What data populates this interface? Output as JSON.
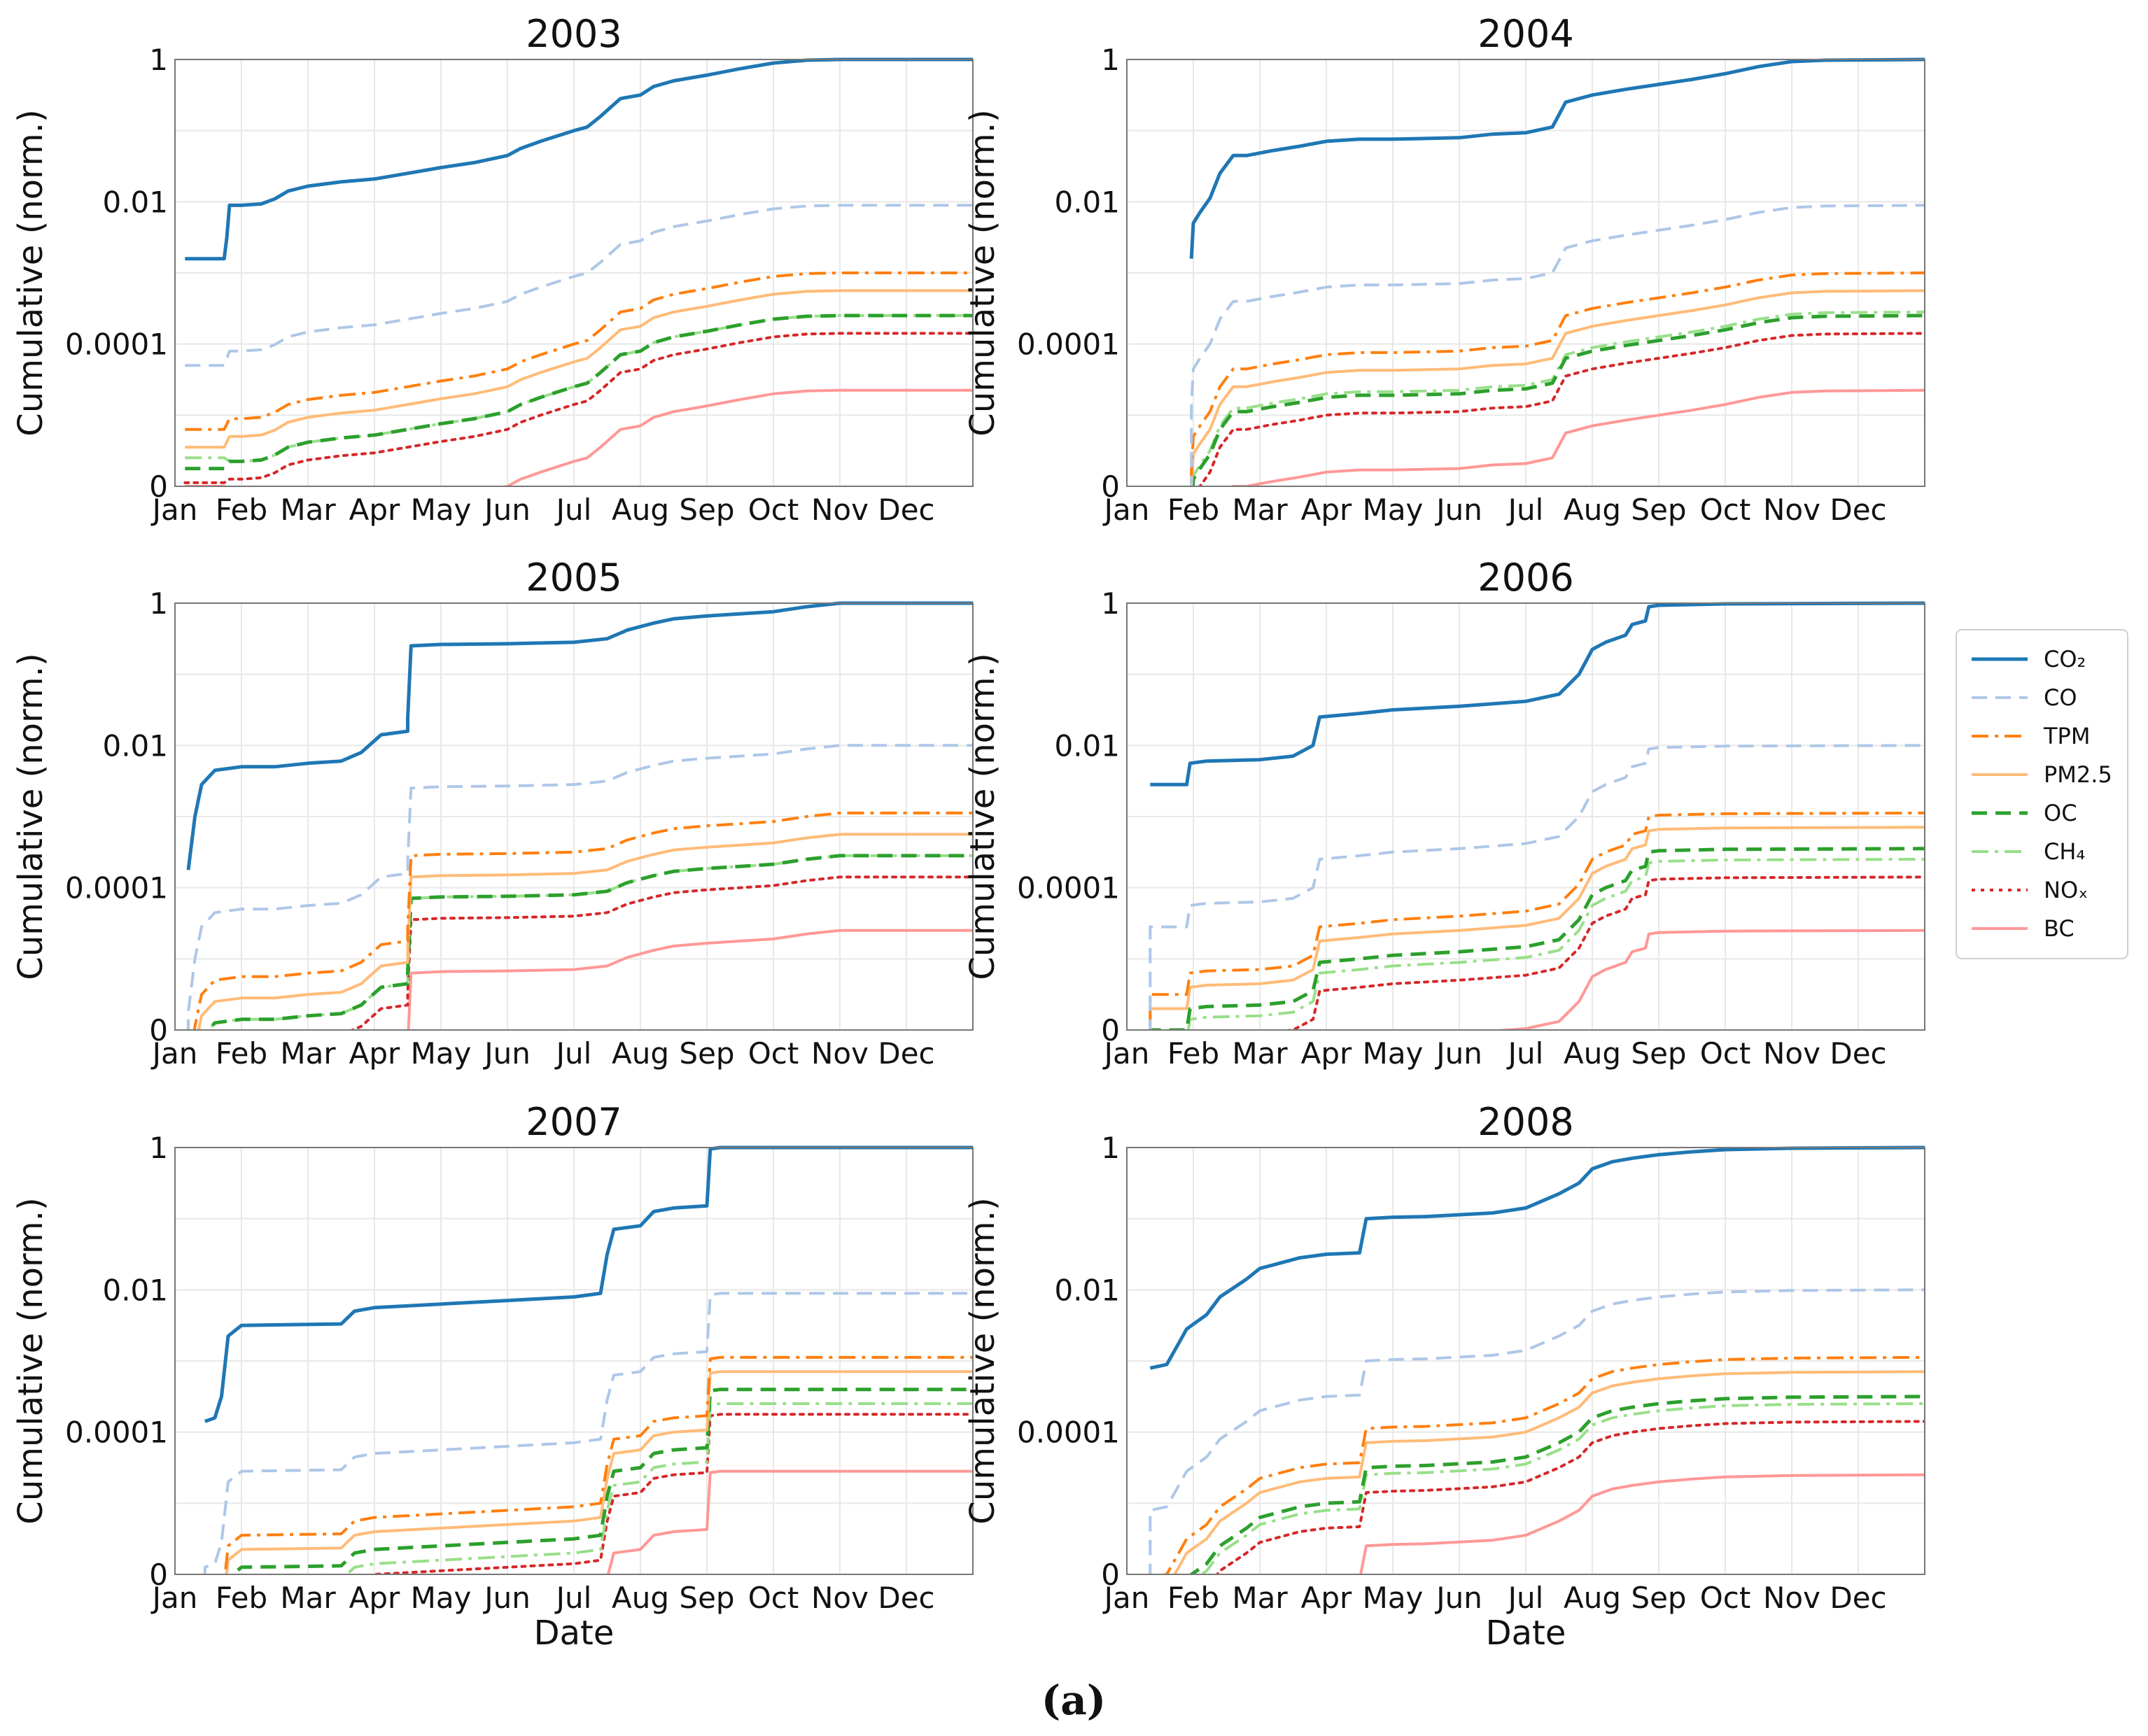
{
  "chart_data": {
    "type": "line",
    "y_scale": "log",
    "ylabel": "Cumulative (norm.)",
    "xlabel": "Date",
    "month_ticks": [
      "Jan",
      "Feb",
      "Mar",
      "Apr",
      "May",
      "Jun",
      "Jul",
      "Aug",
      "Sep",
      "Oct",
      "Nov",
      "Dec"
    ],
    "y_ticks": [
      {
        "value": 1e-06,
        "label": "0"
      },
      {
        "value": 0.0001,
        "label": "0.0001"
      },
      {
        "value": 0.01,
        "label": "0.01"
      },
      {
        "value": 1,
        "label": "1"
      }
    ],
    "ylim": [
      1e-06,
      1
    ],
    "grid": true,
    "legend_position": "right",
    "caption": "(a)",
    "legend": [
      {
        "key": "CO2",
        "label": "CO₂",
        "color": "#1f77b4",
        "dash": "solid",
        "width": 5
      },
      {
        "key": "CO",
        "label": "CO",
        "color": "#aec7e8",
        "dash": "dashed",
        "width": 4
      },
      {
        "key": "TPM",
        "label": "TPM",
        "color": "#ff7f0e",
        "dash": "dashdot",
        "width": 4
      },
      {
        "key": "PM25",
        "label": "PM2.5",
        "color": "#ffbb78",
        "dash": "solid",
        "width": 4
      },
      {
        "key": "OC",
        "label": "OC",
        "color": "#2ca02c",
        "dash": "dashed",
        "width": 5
      },
      {
        "key": "CH4",
        "label": "CH₄",
        "color": "#98df8a",
        "dash": "dashdot",
        "width": 4
      },
      {
        "key": "NOx",
        "label": "NOₓ",
        "color": "#d62728",
        "dash": "dotted",
        "width": 4
      },
      {
        "key": "BC",
        "label": "BC",
        "color": "#ff9896",
        "dash": "solid",
        "width": 4
      }
    ],
    "panels": [
      {
        "title": "2003",
        "co2_curve": [
          [
            0.15,
            -2.8
          ],
          [
            0.74,
            -2.8
          ],
          [
            0.78,
            -2.5
          ],
          [
            0.82,
            -2.05
          ],
          [
            1.0,
            -2.05
          ],
          [
            1.3,
            -2.03
          ],
          [
            1.5,
            -1.96
          ],
          [
            1.7,
            -1.85
          ],
          [
            2.0,
            -1.78
          ],
          [
            2.5,
            -1.72
          ],
          [
            3.0,
            -1.68
          ],
          [
            3.5,
            -1.6
          ],
          [
            4.0,
            -1.52
          ],
          [
            4.5,
            -1.45
          ],
          [
            5.0,
            -1.35
          ],
          [
            5.2,
            -1.25
          ],
          [
            5.5,
            -1.15
          ],
          [
            6.0,
            -1.0
          ],
          [
            6.2,
            -0.95
          ],
          [
            6.4,
            -0.8
          ],
          [
            6.7,
            -0.55
          ],
          [
            7.0,
            -0.5
          ],
          [
            7.2,
            -0.38
          ],
          [
            7.5,
            -0.3
          ],
          [
            8.0,
            -0.22
          ],
          [
            8.5,
            -0.13
          ],
          [
            9.0,
            -0.05
          ],
          [
            9.5,
            -0.01
          ],
          [
            10.0,
            0.0
          ],
          [
            12.0,
            0.0
          ]
        ],
        "offsets": {
          "CO": -2.05,
          "TPM": -3.0,
          "PM25": -3.25,
          "OC": -3.6,
          "CH4": -3.6,
          "NOx": -3.85,
          "BC": -4.65
        },
        "other_start": 0.82,
        "pre_levels": {
          "CO": -4.3,
          "TPM": -5.2,
          "PM25": -5.45,
          "OC": -5.75,
          "CH4": -5.6,
          "NOx": -5.95,
          "BC": -6.0
        }
      },
      {
        "title": "2004",
        "co2_curve": [
          [
            0.97,
            -2.8
          ],
          [
            1.0,
            -2.3
          ],
          [
            1.1,
            -2.15
          ],
          [
            1.25,
            -1.95
          ],
          [
            1.4,
            -1.6
          ],
          [
            1.6,
            -1.35
          ],
          [
            1.8,
            -1.35
          ],
          [
            2.2,
            -1.28
          ],
          [
            2.6,
            -1.22
          ],
          [
            3.0,
            -1.15
          ],
          [
            3.5,
            -1.12
          ],
          [
            4.0,
            -1.12
          ],
          [
            5.0,
            -1.1
          ],
          [
            5.5,
            -1.05
          ],
          [
            6.0,
            -1.03
          ],
          [
            6.4,
            -0.95
          ],
          [
            6.6,
            -0.6
          ],
          [
            7.0,
            -0.5
          ],
          [
            7.5,
            -0.42
          ],
          [
            8.0,
            -0.35
          ],
          [
            8.5,
            -0.28
          ],
          [
            9.0,
            -0.2
          ],
          [
            9.5,
            -0.1
          ],
          [
            10.0,
            -0.03
          ],
          [
            10.5,
            -0.01
          ],
          [
            12.0,
            0.0
          ]
        ],
        "offsets": {
          "CO": -2.05,
          "TPM": -3.0,
          "PM25": -3.25,
          "OC": -3.6,
          "CH4": -3.55,
          "NOx": -3.85,
          "BC": -4.65
        },
        "other_start": 0.97,
        "pre_levels": null
      },
      {
        "title": "2005",
        "co2_curve": [
          [
            0.2,
            -3.75
          ],
          [
            0.3,
            -3.0
          ],
          [
            0.4,
            -2.55
          ],
          [
            0.6,
            -2.35
          ],
          [
            1.0,
            -2.3
          ],
          [
            1.5,
            -2.3
          ],
          [
            2.0,
            -2.25
          ],
          [
            2.5,
            -2.22
          ],
          [
            2.8,
            -2.1
          ],
          [
            3.1,
            -1.85
          ],
          [
            3.5,
            -1.8
          ],
          [
            3.5,
            -1.62
          ],
          [
            3.55,
            -0.6
          ],
          [
            4.0,
            -0.58
          ],
          [
            5.0,
            -0.57
          ],
          [
            6.0,
            -0.55
          ],
          [
            6.5,
            -0.5
          ],
          [
            6.8,
            -0.38
          ],
          [
            7.2,
            -0.28
          ],
          [
            7.5,
            -0.22
          ],
          [
            8.0,
            -0.18
          ],
          [
            8.5,
            -0.15
          ],
          [
            9.0,
            -0.12
          ],
          [
            9.5,
            -0.05
          ],
          [
            10.0,
            0.0
          ],
          [
            12.0,
            0.0
          ]
        ],
        "offsets": {
          "CO": -2.0,
          "TPM": -2.95,
          "PM25": -3.25,
          "OC": -3.55,
          "CH4": -3.55,
          "NOx": -3.85,
          "BC": -4.6
        },
        "other_start": 0.2,
        "pre_levels": null
      },
      {
        "title": "2006",
        "co2_curve": [
          [
            0.35,
            -2.55
          ],
          [
            0.9,
            -2.55
          ],
          [
            0.95,
            -2.25
          ],
          [
            1.2,
            -2.22
          ],
          [
            2.0,
            -2.2
          ],
          [
            2.5,
            -2.15
          ],
          [
            2.8,
            -2.0
          ],
          [
            2.9,
            -1.6
          ],
          [
            3.5,
            -1.55
          ],
          [
            4.0,
            -1.5
          ],
          [
            5.0,
            -1.45
          ],
          [
            6.0,
            -1.38
          ],
          [
            6.5,
            -1.28
          ],
          [
            6.8,
            -1.0
          ],
          [
            7.0,
            -0.65
          ],
          [
            7.2,
            -0.55
          ],
          [
            7.5,
            -0.45
          ],
          [
            7.6,
            -0.3
          ],
          [
            7.8,
            -0.25
          ],
          [
            7.85,
            -0.05
          ],
          [
            8.0,
            -0.03
          ],
          [
            9.0,
            -0.01
          ],
          [
            12.0,
            0.0
          ]
        ],
        "offsets": {
          "CO": -2.0,
          "TPM": -2.95,
          "PM25": -3.15,
          "OC": -3.45,
          "CH4": -3.6,
          "NOx": -3.85,
          "BC": -4.6
        },
        "other_start": 0.35,
        "pre_levels": null
      },
      {
        "title": "2007",
        "co2_curve": [
          [
            0.45,
            -3.85
          ],
          [
            0.6,
            -3.8
          ],
          [
            0.7,
            -3.5
          ],
          [
            0.8,
            -2.65
          ],
          [
            1.0,
            -2.5
          ],
          [
            2.5,
            -2.48
          ],
          [
            2.7,
            -2.3
          ],
          [
            3.0,
            -2.25
          ],
          [
            4.0,
            -2.2
          ],
          [
            5.0,
            -2.15
          ],
          [
            6.0,
            -2.1
          ],
          [
            6.4,
            -2.05
          ],
          [
            6.5,
            -1.5
          ],
          [
            6.6,
            -1.15
          ],
          [
            7.0,
            -1.1
          ],
          [
            7.2,
            -0.9
          ],
          [
            7.5,
            -0.85
          ],
          [
            8.0,
            -0.82
          ],
          [
            8.05,
            -0.02
          ],
          [
            8.2,
            0.0
          ],
          [
            12.0,
            0.0
          ]
        ],
        "offsets": {
          "CO": -2.05,
          "TPM": -2.95,
          "PM25": -3.15,
          "OC": -3.4,
          "CH4": -3.6,
          "NOx": -3.75,
          "BC": -4.55
        },
        "other_start": 0.45,
        "pre_levels": null
      },
      {
        "title": "2008",
        "co2_curve": [
          [
            0.35,
            -3.1
          ],
          [
            0.6,
            -3.05
          ],
          [
            0.75,
            -2.8
          ],
          [
            0.9,
            -2.55
          ],
          [
            1.2,
            -2.35
          ],
          [
            1.4,
            -2.1
          ],
          [
            1.8,
            -1.85
          ],
          [
            2.0,
            -1.7
          ],
          [
            2.2,
            -1.65
          ],
          [
            2.6,
            -1.55
          ],
          [
            3.0,
            -1.5
          ],
          [
            3.5,
            -1.48
          ],
          [
            3.6,
            -1.0
          ],
          [
            4.0,
            -0.98
          ],
          [
            4.5,
            -0.97
          ],
          [
            5.5,
            -0.92
          ],
          [
            6.0,
            -0.85
          ],
          [
            6.5,
            -0.65
          ],
          [
            6.8,
            -0.5
          ],
          [
            7.0,
            -0.3
          ],
          [
            7.3,
            -0.2
          ],
          [
            7.6,
            -0.15
          ],
          [
            8.0,
            -0.1
          ],
          [
            8.5,
            -0.06
          ],
          [
            9.0,
            -0.03
          ],
          [
            10.0,
            -0.01
          ],
          [
            12.0,
            0.0
          ]
        ],
        "offsets": {
          "CO": -2.0,
          "TPM": -2.95,
          "PM25": -3.15,
          "OC": -3.5,
          "CH4": -3.6,
          "NOx": -3.85,
          "BC": -4.6
        },
        "other_start": 0.35,
        "pre_levels": null
      }
    ]
  }
}
